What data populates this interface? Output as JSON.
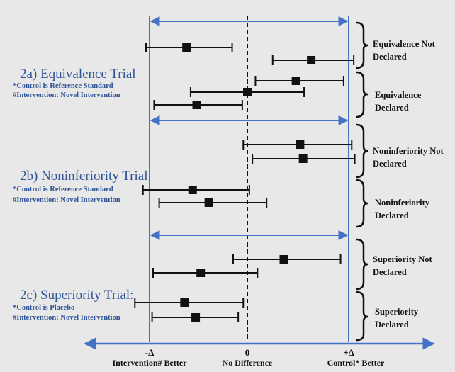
{
  "diagram": {
    "sections": [
      {
        "id": "2a",
        "title": "2a) Equivalence Trial",
        "note_lines": [
          "*Control is Reference Standard",
          "#Intervention: Novel Intervention"
        ],
        "brackets": [
          {
            "label_lines": [
              "Equivalence Not",
              "Declared"
            ]
          },
          {
            "label_lines": [
              "Equivalence",
              "Declared"
            ]
          }
        ],
        "intervals": [
          {
            "low": -1.0,
            "high": -0.15,
            "point": -0.6
          },
          {
            "low": 0.25,
            "high": 1.05,
            "point": 0.63
          },
          {
            "low": 0.08,
            "high": 0.95,
            "point": 0.48
          },
          {
            "low": -0.56,
            "high": 0.56,
            "point": 0.0
          },
          {
            "low": -0.92,
            "high": -0.05,
            "point": -0.5
          }
        ]
      },
      {
        "id": "2b",
        "title": "2b) Noninferiority Trial",
        "note_lines": [
          "*Control is Reference Standard",
          "#Intervention: Novel Intervention"
        ],
        "brackets": [
          {
            "label_lines": [
              "Noninferiority Not",
              "Declared"
            ]
          },
          {
            "label_lines": [
              "Noninferiority",
              "Declared"
            ]
          }
        ],
        "intervals": [
          {
            "low": -0.04,
            "high": 1.03,
            "point": 0.52
          },
          {
            "low": 0.05,
            "high": 1.06,
            "point": 0.55
          },
          {
            "low": -1.03,
            "high": 0.02,
            "point": -0.54
          },
          {
            "low": -0.87,
            "high": 0.19,
            "point": -0.38
          }
        ]
      },
      {
        "id": "2c",
        "title": "2c) Superiority Trial:",
        "note_lines": [
          "*Control is Placebo",
          "#Intervention: Novel Intervention"
        ],
        "brackets": [
          {
            "label_lines": [
              "Superiority Not",
              "Declared"
            ]
          },
          {
            "label_lines": [
              "Superiority",
              "Declared"
            ]
          }
        ],
        "intervals": [
          {
            "low": -0.14,
            "high": 0.92,
            "point": 0.36
          },
          {
            "low": -0.93,
            "high": 0.1,
            "point": -0.46
          },
          {
            "low": -1.11,
            "high": -0.04,
            "point": -0.62
          },
          {
            "low": -0.94,
            "high": -0.09,
            "point": -0.51
          }
        ]
      }
    ],
    "axis": {
      "ticks": [
        {
          "value": -1,
          "label": "-Δ",
          "sub_label": "Intervention# Better"
        },
        {
          "value": 0,
          "label": "0",
          "sub_label": "No Difference"
        },
        {
          "value": 1,
          "label": "+Δ",
          "sub_label": "Control* Better"
        }
      ]
    },
    "colors": {
      "blue": "#4472c4",
      "title_blue": "#2f5597",
      "ink": "#111111",
      "background": "#e8e8e8"
    }
  }
}
